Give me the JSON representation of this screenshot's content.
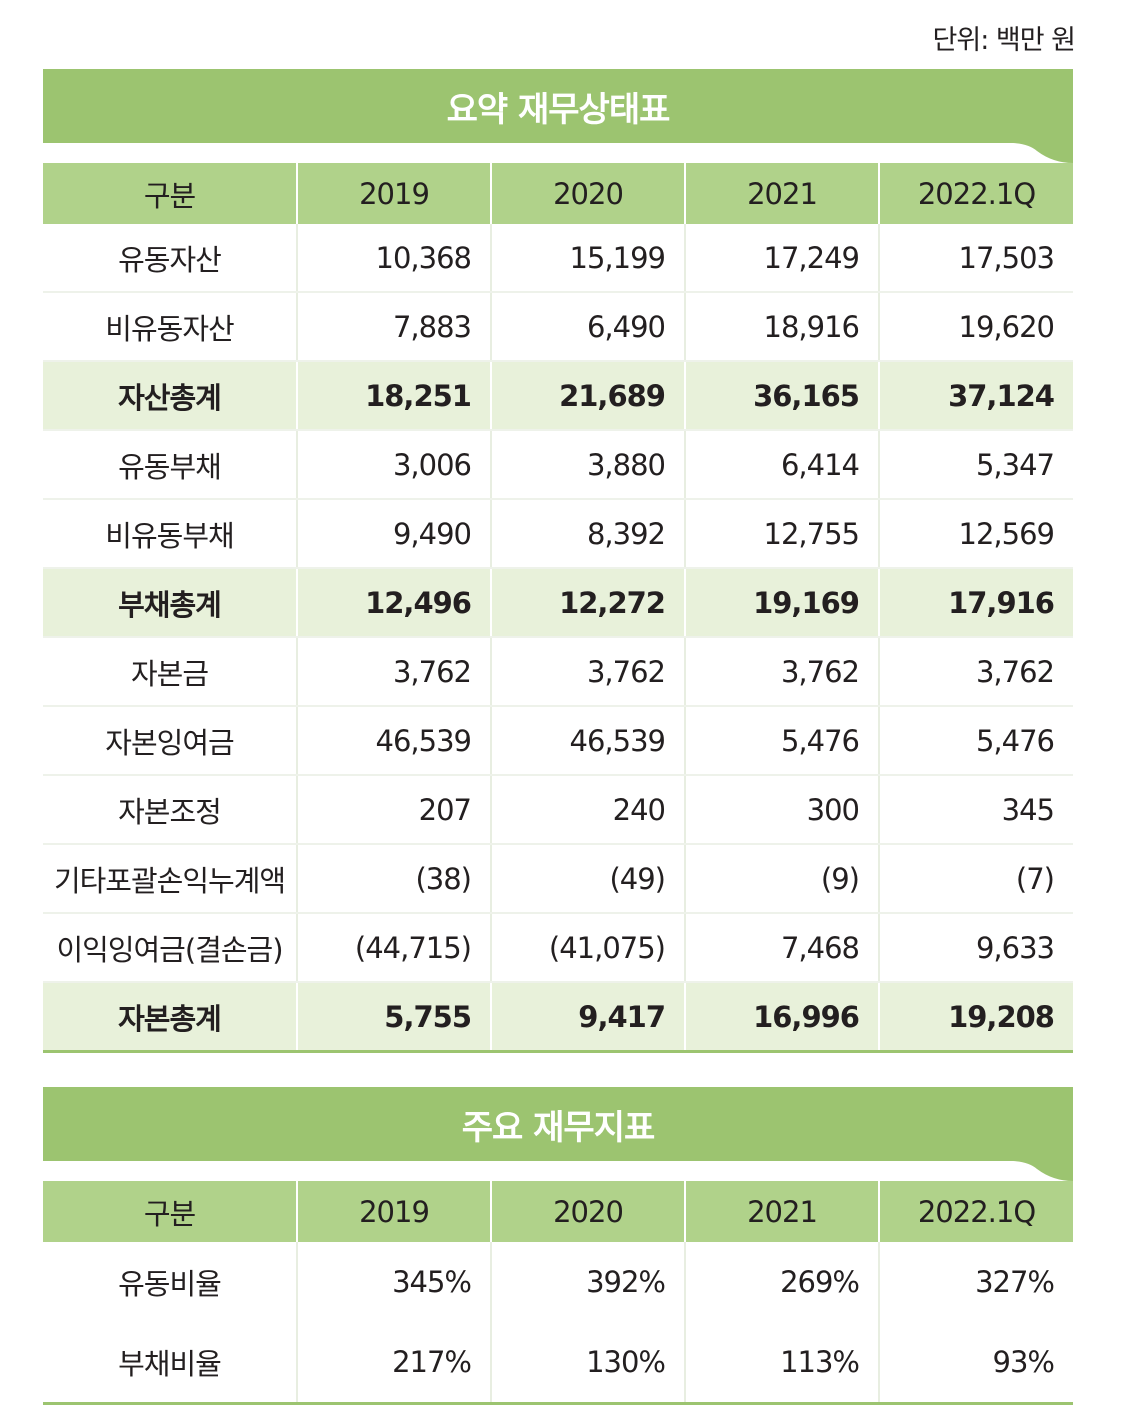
{
  "unit_label": "단위: 백만 원",
  "balance_sheet": {
    "title": "요약 재무상태표",
    "headers": [
      "구분",
      "2019",
      "2020",
      "2021",
      "2022.1Q"
    ],
    "rows": [
      {
        "label": "유동자산",
        "values": [
          "10,368",
          "15,199",
          "17,249",
          "17,503"
        ],
        "total": false
      },
      {
        "label": "비유동자산",
        "values": [
          "7,883",
          "6,490",
          "18,916",
          "19,620"
        ],
        "total": false
      },
      {
        "label": "자산총계",
        "values": [
          "18,251",
          "21,689",
          "36,165",
          "37,124"
        ],
        "total": true
      },
      {
        "label": "유동부채",
        "values": [
          "3,006",
          "3,880",
          "6,414",
          "5,347"
        ],
        "total": false
      },
      {
        "label": "비유동부채",
        "values": [
          "9,490",
          "8,392",
          "12,755",
          "12,569"
        ],
        "total": false
      },
      {
        "label": "부채총계",
        "values": [
          "12,496",
          "12,272",
          "19,169",
          "17,916"
        ],
        "total": true
      },
      {
        "label": "자본금",
        "values": [
          "3,762",
          "3,762",
          "3,762",
          "3,762"
        ],
        "total": false
      },
      {
        "label": "자본잉여금",
        "values": [
          "46,539",
          "46,539",
          "5,476",
          "5,476"
        ],
        "total": false
      },
      {
        "label": "자본조정",
        "values": [
          "207",
          "240",
          "300",
          "345"
        ],
        "total": false
      },
      {
        "label": "기타포괄손익누계액",
        "values": [
          "(38)",
          "(49)",
          "(9)",
          "(7)"
        ],
        "total": false
      },
      {
        "label": "이익잉여금(결손금)",
        "values": [
          "(44,715)",
          "(41,075)",
          "7,468",
          "9,633"
        ],
        "total": false
      },
      {
        "label": "자본총계",
        "values": [
          "5,755",
          "9,417",
          "16,996",
          "19,208"
        ],
        "total": true
      }
    ]
  },
  "ratios": {
    "title": "주요 재무지표",
    "headers": [
      "구분",
      "2019",
      "2020",
      "2021",
      "2022.1Q"
    ],
    "rows": [
      {
        "label": "유동비율",
        "values": [
          "345%",
          "392%",
          "269%",
          "327%"
        ]
      },
      {
        "label": "부채비율",
        "values": [
          "217%",
          "130%",
          "113%",
          "93%"
        ]
      }
    ]
  },
  "colors": {
    "banner": "#9cc470",
    "header": "#b0d28a",
    "total_row": "#e8f1da"
  }
}
